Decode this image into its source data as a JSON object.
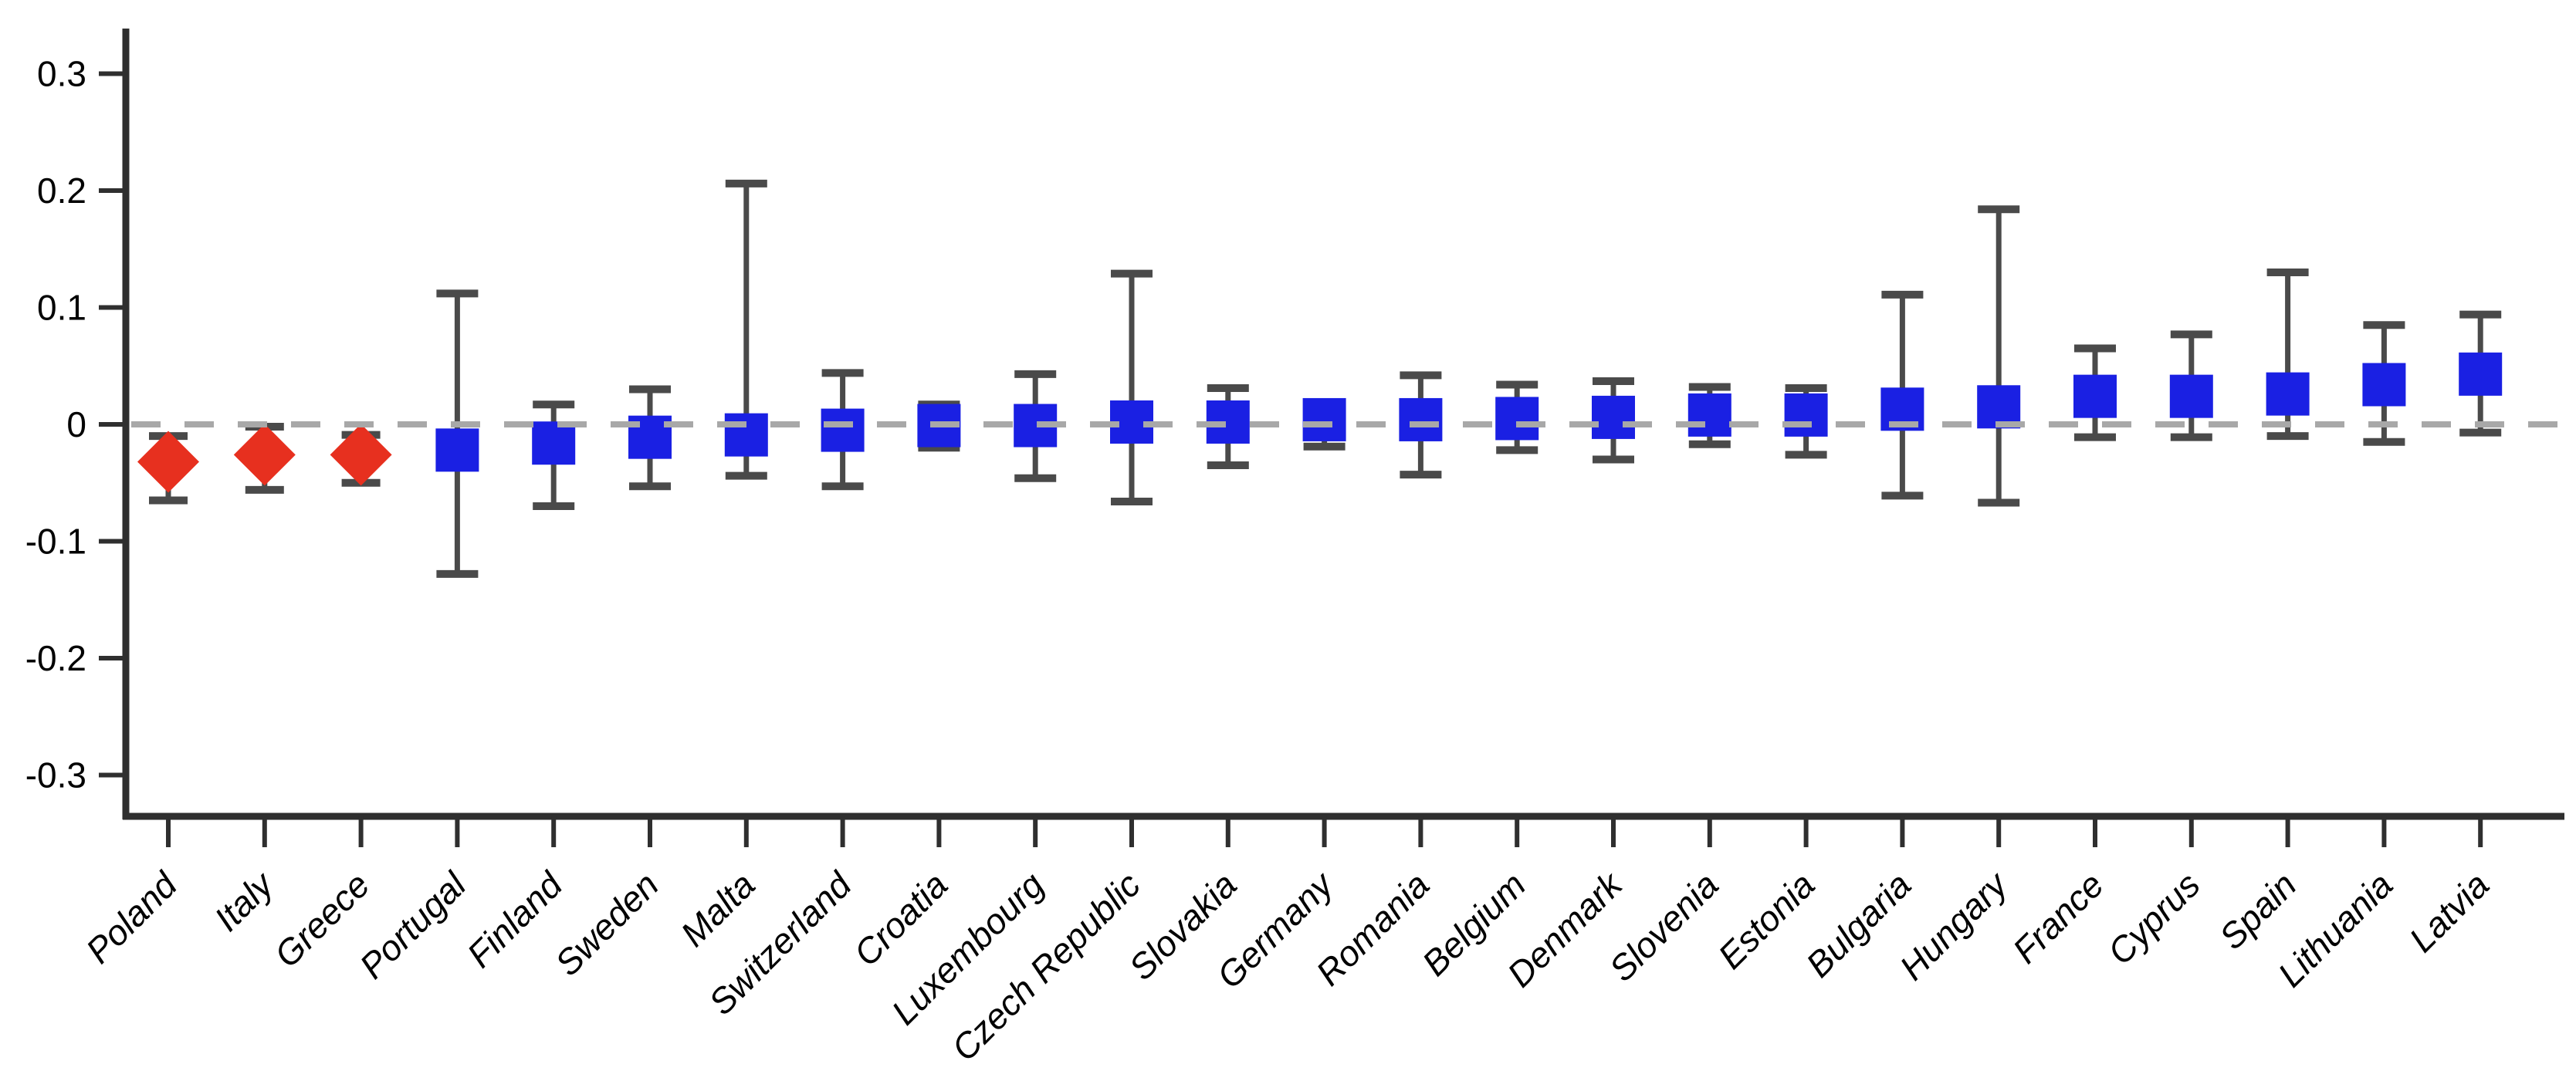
{
  "page": {
    "background_color": "#ffffff"
  },
  "chart_data": {
    "type": "scatter",
    "subtype": "coefficient-plot-with-error-bars",
    "title": "",
    "xlabel": "",
    "ylabel": "",
    "grid": false,
    "legend_position": "none",
    "ylim": [
      -0.345,
      0.345
    ],
    "yticks": [
      0.3,
      0.2,
      0.1,
      0,
      -0.1,
      -0.2,
      -0.3
    ],
    "ytick_labels": [
      "0.3",
      "0.2",
      "0.1",
      "0",
      "-0.1",
      "-0.2",
      "-0.3"
    ],
    "reference_line": {
      "y": 0,
      "style": "dashed",
      "color": "#a8a8a8"
    },
    "categories": [
      "Poland",
      "Italy",
      "Greece",
      "Portugal",
      "Finland",
      "Sweden",
      "Malta",
      "Switzerland",
      "Croatia",
      "Luxembourg",
      "Czech Republic",
      "Slovakia",
      "Germany",
      "Romania",
      "Belgium",
      "Denmark",
      "Slovenia",
      "Estonia",
      "Bulgaria",
      "Hungary",
      "France",
      "Cyprus",
      "Spain",
      "Lithuania",
      "Latvia"
    ],
    "series": [
      {
        "name": "estimate",
        "values": [
          -0.032,
          -0.026,
          -0.026,
          -0.022,
          -0.016,
          -0.011,
          -0.009,
          -0.005,
          -0.001,
          -0.001,
          0.002,
          0.002,
          0.004,
          0.004,
          0.005,
          0.006,
          0.008,
          0.008,
          0.013,
          0.015,
          0.024,
          0.024,
          0.026,
          0.034,
          0.043
        ]
      },
      {
        "name": "ci_low",
        "values": [
          -0.065,
          -0.056,
          -0.05,
          -0.128,
          -0.07,
          -0.053,
          -0.044,
          -0.053,
          -0.02,
          -0.046,
          -0.066,
          -0.035,
          -0.019,
          -0.043,
          -0.022,
          -0.03,
          -0.017,
          -0.026,
          -0.061,
          -0.067,
          -0.011,
          -0.011,
          -0.01,
          -0.015,
          -0.007
        ]
      },
      {
        "name": "ci_high",
        "values": [
          -0.01,
          -0.002,
          -0.009,
          0.112,
          0.017,
          0.03,
          0.206,
          0.044,
          0.017,
          0.043,
          0.129,
          0.031,
          0.019,
          0.042,
          0.034,
          0.037,
          0.032,
          0.031,
          0.111,
          0.184,
          0.065,
          0.077,
          0.13,
          0.085,
          0.094
        ]
      }
    ],
    "points": [
      {
        "country": "Poland",
        "estimate": -0.032,
        "ci_low": -0.065,
        "ci_high": -0.01,
        "marker": "diamond",
        "color": "#e7301f"
      },
      {
        "country": "Italy",
        "estimate": -0.026,
        "ci_low": -0.056,
        "ci_high": -0.002,
        "marker": "diamond",
        "color": "#e7301f"
      },
      {
        "country": "Greece",
        "estimate": -0.026,
        "ci_low": -0.05,
        "ci_high": -0.009,
        "marker": "diamond",
        "color": "#e7301f"
      },
      {
        "country": "Portugal",
        "estimate": -0.022,
        "ci_low": -0.128,
        "ci_high": 0.112,
        "marker": "square",
        "color": "#1a20e3"
      },
      {
        "country": "Finland",
        "estimate": -0.016,
        "ci_low": -0.07,
        "ci_high": 0.017,
        "marker": "square",
        "color": "#1a20e3"
      },
      {
        "country": "Sweden",
        "estimate": -0.011,
        "ci_low": -0.053,
        "ci_high": 0.03,
        "marker": "square",
        "color": "#1a20e3"
      },
      {
        "country": "Malta",
        "estimate": -0.009,
        "ci_low": -0.044,
        "ci_high": 0.206,
        "marker": "square",
        "color": "#1a20e3"
      },
      {
        "country": "Switzerland",
        "estimate": -0.005,
        "ci_low": -0.053,
        "ci_high": 0.044,
        "marker": "square",
        "color": "#1a20e3"
      },
      {
        "country": "Croatia",
        "estimate": -0.001,
        "ci_low": -0.02,
        "ci_high": 0.017,
        "marker": "square",
        "color": "#1a20e3"
      },
      {
        "country": "Luxembourg",
        "estimate": -0.001,
        "ci_low": -0.046,
        "ci_high": 0.043,
        "marker": "square",
        "color": "#1a20e3"
      },
      {
        "country": "Czech Republic",
        "estimate": 0.002,
        "ci_low": -0.066,
        "ci_high": 0.129,
        "marker": "square",
        "color": "#1a20e3"
      },
      {
        "country": "Slovakia",
        "estimate": 0.002,
        "ci_low": -0.035,
        "ci_high": 0.031,
        "marker": "square",
        "color": "#1a20e3"
      },
      {
        "country": "Germany",
        "estimate": 0.004,
        "ci_low": -0.019,
        "ci_high": 0.019,
        "marker": "square",
        "color": "#1a20e3"
      },
      {
        "country": "Romania",
        "estimate": 0.004,
        "ci_low": -0.043,
        "ci_high": 0.042,
        "marker": "square",
        "color": "#1a20e3"
      },
      {
        "country": "Belgium",
        "estimate": 0.005,
        "ci_low": -0.022,
        "ci_high": 0.034,
        "marker": "square",
        "color": "#1a20e3"
      },
      {
        "country": "Denmark",
        "estimate": 0.006,
        "ci_low": -0.03,
        "ci_high": 0.037,
        "marker": "square",
        "color": "#1a20e3"
      },
      {
        "country": "Slovenia",
        "estimate": 0.008,
        "ci_low": -0.017,
        "ci_high": 0.032,
        "marker": "square",
        "color": "#1a20e3"
      },
      {
        "country": "Estonia",
        "estimate": 0.008,
        "ci_low": -0.026,
        "ci_high": 0.031,
        "marker": "square",
        "color": "#1a20e3"
      },
      {
        "country": "Bulgaria",
        "estimate": 0.013,
        "ci_low": -0.061,
        "ci_high": 0.111,
        "marker": "square",
        "color": "#1a20e3"
      },
      {
        "country": "Hungary",
        "estimate": 0.015,
        "ci_low": -0.067,
        "ci_high": 0.184,
        "marker": "square",
        "color": "#1a20e3"
      },
      {
        "country": "France",
        "estimate": 0.024,
        "ci_low": -0.011,
        "ci_high": 0.065,
        "marker": "square",
        "color": "#1a20e3"
      },
      {
        "country": "Cyprus",
        "estimate": 0.024,
        "ci_low": -0.011,
        "ci_high": 0.077,
        "marker": "square",
        "color": "#1a20e3"
      },
      {
        "country": "Spain",
        "estimate": 0.026,
        "ci_low": -0.01,
        "ci_high": 0.13,
        "marker": "square",
        "color": "#1a20e3"
      },
      {
        "country": "Lithuania",
        "estimate": 0.034,
        "ci_low": -0.015,
        "ci_high": 0.085,
        "marker": "square",
        "color": "#1a20e3"
      },
      {
        "country": "Latvia",
        "estimate": 0.043,
        "ci_low": -0.007,
        "ci_high": 0.094,
        "marker": "square",
        "color": "#1a20e3"
      }
    ]
  },
  "colors": {
    "negative_significant_marker": "#e7301f",
    "other_marker": "#1a20e3",
    "whisker": "#4a4a4a",
    "axis": "#2f2f2f",
    "zero_reference_line": "#a8a8a8",
    "tick_label_text": "#000000"
  }
}
